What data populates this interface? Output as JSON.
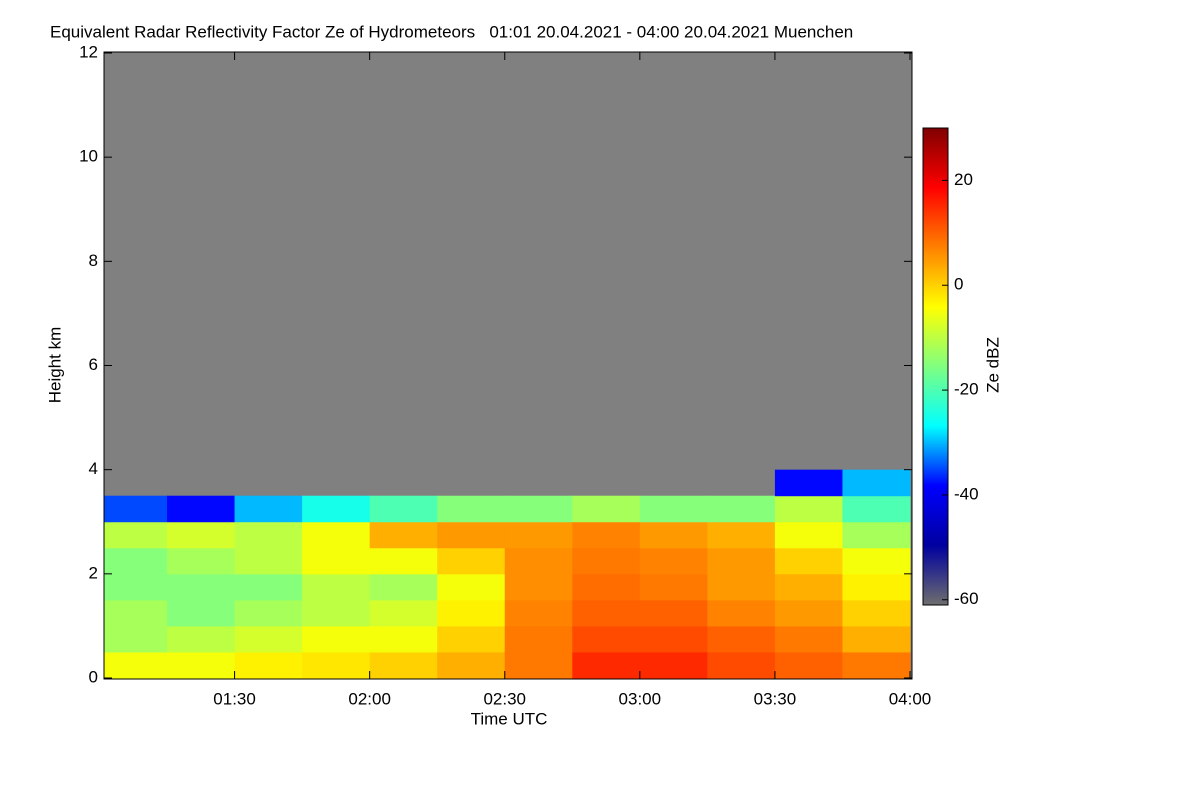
{
  "chart_data": {
    "type": "heatmap",
    "title": "Equivalent Radar Reflectivity Factor Ze of Hydrometeors   01:01 20.04.2021 - 04:00 20.04.2021 Muenchen",
    "xlabel": "Time UTC",
    "ylabel": "Height km",
    "zlabel": "Ze dBZ",
    "x": [
      "01:00",
      "01:15",
      "01:30",
      "01:45",
      "02:00",
      "02:15",
      "02:30",
      "02:45",
      "03:00",
      "03:15",
      "03:30",
      "03:45"
    ],
    "y": [
      0,
      0.5,
      1,
      1.5,
      2,
      2.5,
      3,
      3.5
    ],
    "values": [
      [
        -5,
        -12,
        -12,
        -15,
        -15,
        -10,
        -35,
        null
      ],
      [
        -5,
        -10,
        -15,
        -15,
        -12,
        -8,
        -38,
        null
      ],
      [
        -3,
        -8,
        -12,
        -15,
        -10,
        -10,
        -30,
        null
      ],
      [
        -2,
        -5,
        -10,
        -10,
        -5,
        -5,
        -25,
        null
      ],
      [
        0,
        -5,
        -8,
        -12,
        -5,
        3,
        -20,
        null
      ],
      [
        3,
        0,
        -3,
        -5,
        0,
        5,
        -15,
        null
      ],
      [
        8,
        8,
        7,
        6,
        6,
        5,
        -15,
        null
      ],
      [
        15,
        12,
        10,
        9,
        8,
        7,
        -12,
        null
      ],
      [
        15,
        12,
        10,
        8,
        7,
        5,
        -15,
        null
      ],
      [
        12,
        10,
        7,
        5,
        5,
        3,
        -15,
        null
      ],
      [
        10,
        8,
        5,
        3,
        0,
        -5,
        -10,
        -38
      ],
      [
        8,
        3,
        0,
        -3,
        -5,
        -12,
        -20,
        -30
      ]
    ],
    "xlim": [
      "01:01",
      "04:00"
    ],
    "xticks": [
      "01:30",
      "02:00",
      "02:30",
      "03:00",
      "03:30",
      "04:00"
    ],
    "ylim": [
      0,
      12
    ],
    "yticks": [
      0,
      2,
      4,
      6,
      8,
      10,
      12
    ],
    "zlim": [
      -61,
      30
    ],
    "zticks": [
      -60,
      -40,
      -20,
      0,
      20
    ],
    "colormap": [
      "#6e6e6e",
      "#0000a0",
      "#0000ff",
      "#00ffff",
      "#80ff80",
      "#ffff00",
      "#ff8000",
      "#ff0000",
      "#800000"
    ],
    "background": "#808080"
  }
}
